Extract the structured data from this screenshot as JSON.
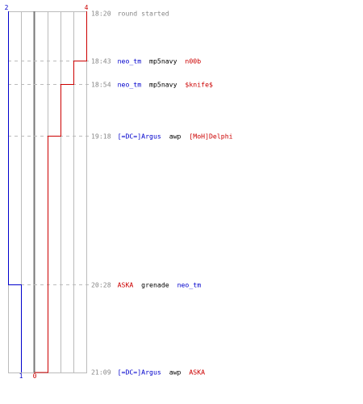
{
  "colors": {
    "blue_team": "#0000cc",
    "red_team": "#cc0000",
    "grid": "#bbbbbb",
    "center": "#777777",
    "dashed": "#bbbbbb",
    "time_text": "#888888"
  },
  "counts": {
    "blue_start": "2",
    "red_start": "4",
    "blue_end": "1",
    "red_end": "0"
  },
  "events": [
    {
      "time": "18:20",
      "parts": [
        {
          "text": "round started",
          "color": "grey"
        }
      ]
    },
    {
      "time": "18:43",
      "parts": [
        {
          "text": "neo_tm",
          "color": "blue"
        },
        {
          "text": " mp5navy ",
          "color": "black"
        },
        {
          "text": "n00b",
          "color": "red"
        }
      ]
    },
    {
      "time": "18:54",
      "parts": [
        {
          "text": "neo_tm",
          "color": "blue"
        },
        {
          "text": " mp5navy ",
          "color": "black"
        },
        {
          "text": "$knife$",
          "color": "red"
        }
      ]
    },
    {
      "time": "19:18",
      "parts": [
        {
          "text": "[=DC=]Argus",
          "color": "blue"
        },
        {
          "text": " awp ",
          "color": "black"
        },
        {
          "text": "[MoH]Delphi",
          "color": "red"
        }
      ]
    },
    {
      "time": "20:28",
      "parts": [
        {
          "text": "ASKA",
          "color": "red"
        },
        {
          "text": " grenade ",
          "color": "black"
        },
        {
          "text": "neo_tm",
          "color": "blue"
        }
      ]
    },
    {
      "time": "21:09",
      "parts": [
        {
          "text": "[=DC=]Argus",
          "color": "blue"
        },
        {
          "text": " awp ",
          "color": "black"
        },
        {
          "text": "ASKA",
          "color": "red"
        }
      ]
    }
  ]
}
